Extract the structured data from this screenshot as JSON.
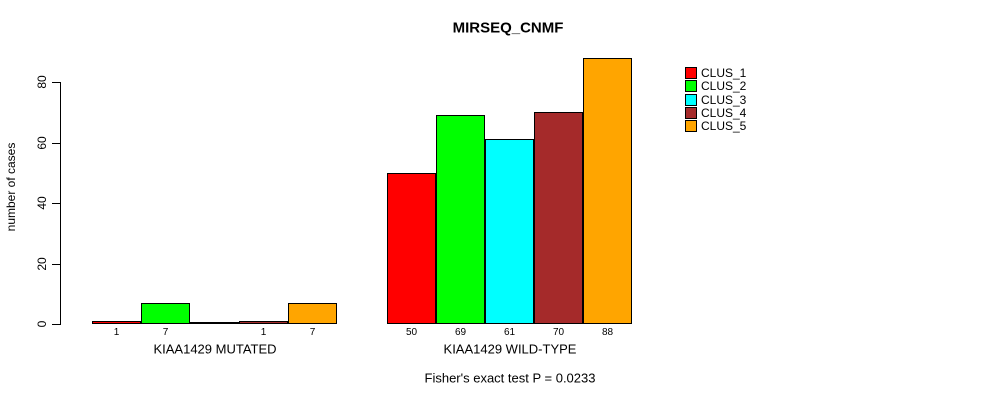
{
  "chart_data": {
    "type": "bar",
    "title": "MIRSEQ_CNMF",
    "subtitle": "Fisher's exact test P = 0.0233",
    "ylabel": "number of cases",
    "xlabel": "",
    "ylim": [
      0,
      88
    ],
    "yticks": [
      0,
      20,
      40,
      60,
      80
    ],
    "grid": false,
    "legend_position": "right",
    "bar_value_labels_shown": true,
    "zero_bars_unlabeled": true,
    "groups": [
      "KIAA1429 MUTATED",
      "KIAA1429 WILD-TYPE"
    ],
    "series": [
      {
        "name": "CLUS_1",
        "color": "#FF0000",
        "values": [
          1,
          50
        ]
      },
      {
        "name": "CLUS_2",
        "color": "#00FF00",
        "values": [
          7,
          69
        ]
      },
      {
        "name": "CLUS_3",
        "color": "#00FFFF",
        "values": [
          0,
          61
        ]
      },
      {
        "name": "CLUS_4",
        "color": "#A52A2A",
        "values": [
          1,
          70
        ]
      },
      {
        "name": "CLUS_5",
        "color": "#FFA500",
        "values": [
          7,
          88
        ]
      }
    ],
    "colors": {
      "background": "#FFFFFF",
      "axis": "#000000",
      "text": "#000000"
    }
  }
}
